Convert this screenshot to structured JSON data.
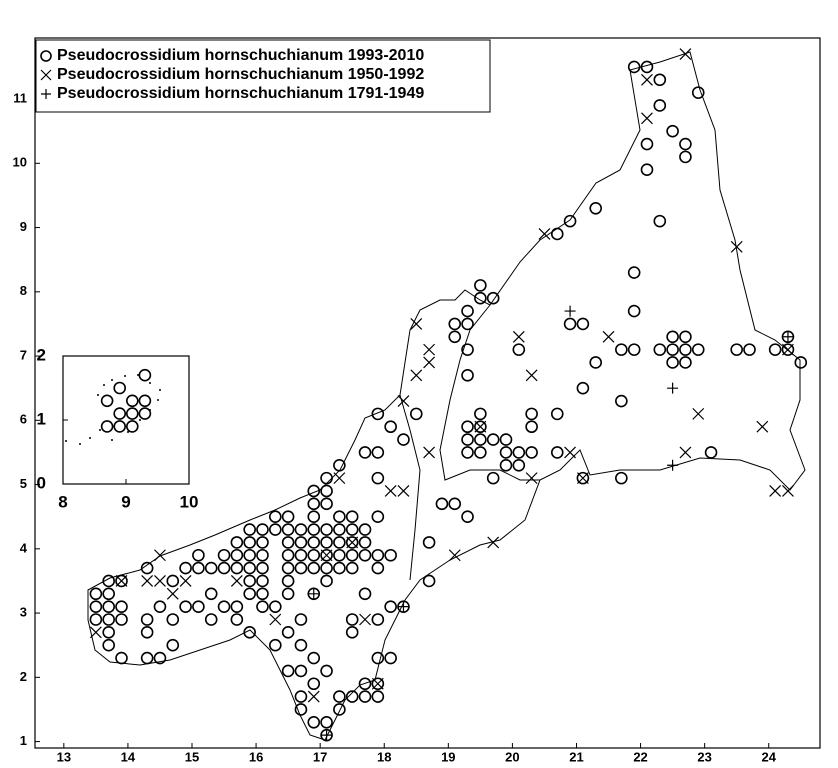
{
  "chart_data": [
    {
      "type": "scatter",
      "xlim": [
        12.55,
        24.8
      ],
      "ylim": [
        0.9,
        11.95
      ],
      "xticks": [
        13,
        14,
        15,
        16,
        17,
        18,
        19,
        20,
        21,
        22,
        23,
        24
      ],
      "yticks": [
        1,
        2,
        3,
        4,
        5,
        6,
        7,
        8,
        9,
        10,
        11
      ],
      "legend": "upper left",
      "series": [
        {
          "name": "Pseudocrossidium hornschuchianum 1993-2010",
          "marker": "circle",
          "color": "#000000",
          "x": [
            13.5,
            13.5,
            13.5,
            13.7,
            13.7,
            13.7,
            13.7,
            13.7,
            13.7,
            13.9,
            13.9,
            13.9,
            13.9,
            14.3,
            14.3,
            14.3,
            14.3,
            14.5,
            14.5,
            14.7,
            14.7,
            14.7,
            14.9,
            14.9,
            15.1,
            15.1,
            15.1,
            15.3,
            15.3,
            15.3,
            15.5,
            15.5,
            15.5,
            15.7,
            15.7,
            15.7,
            15.7,
            15.7,
            15.9,
            15.9,
            15.9,
            15.9,
            15.9,
            15.9,
            15.9,
            16.1,
            16.1,
            16.1,
            16.1,
            16.1,
            16.1,
            16.1,
            16.3,
            16.3,
            16.3,
            16.3,
            16.5,
            16.5,
            16.5,
            16.5,
            16.5,
            16.5,
            16.5,
            16.5,
            16.5,
            16.7,
            16.7,
            16.7,
            16.7,
            16.7,
            16.7,
            16.7,
            16.7,
            16.7,
            16.9,
            16.9,
            16.9,
            16.9,
            16.9,
            16.9,
            16.9,
            16.9,
            16.9,
            16.9,
            16.9,
            17.1,
            17.1,
            17.1,
            17.1,
            17.1,
            17.1,
            17.1,
            17.1,
            17.1,
            17.1,
            17.1,
            17.3,
            17.3,
            17.3,
            17.3,
            17.3,
            17.3,
            17.3,
            17.3,
            17.5,
            17.5,
            17.5,
            17.5,
            17.5,
            17.5,
            17.5,
            17.5,
            17.7,
            17.7,
            17.7,
            17.7,
            17.7,
            17.7,
            17.7,
            17.9,
            17.9,
            17.9,
            17.9,
            17.9,
            17.9,
            17.9,
            17.9,
            17.9,
            17.9,
            18.1,
            18.1,
            18.1,
            18.1,
            18.3,
            18.3,
            18.5,
            18.7,
            18.7,
            18.9,
            19.1,
            19.1,
            19.1,
            19.3,
            19.3,
            19.3,
            19.3,
            19.3,
            19.3,
            19.3,
            19.3,
            19.5,
            19.5,
            19.5,
            19.5,
            19.5,
            19.5,
            19.7,
            19.7,
            19.7,
            19.9,
            19.9,
            19.9,
            20.1,
            20.1,
            20.1,
            20.3,
            20.3,
            20.3,
            20.7,
            20.7,
            20.7,
            20.9,
            20.9,
            21.1,
            21.1,
            21.1,
            21.3,
            21.3,
            21.7,
            21.7,
            21.7,
            21.9,
            21.9,
            21.9,
            21.9,
            22.1,
            22.1,
            22.1,
            22.3,
            22.3,
            22.3,
            22.3,
            22.5,
            22.5,
            22.5,
            22.5,
            22.7,
            22.7,
            22.7,
            22.7,
            22.7,
            22.9,
            22.9,
            23.1,
            23.5,
            23.7,
            24.1,
            24.3,
            24.3,
            24.5
          ],
          "values": [
            3.3,
            3.1,
            2.9,
            3.5,
            3.3,
            3.1,
            2.9,
            2.7,
            2.5,
            3.1,
            2.9,
            3.5,
            2.3,
            3.7,
            2.9,
            2.7,
            2.3,
            2.3,
            3.1,
            3.5,
            2.9,
            2.5,
            3.7,
            3.1,
            3.9,
            3.7,
            3.1,
            3.7,
            3.3,
            2.9,
            3.9,
            3.7,
            3.1,
            4.1,
            3.9,
            3.7,
            3.1,
            2.9,
            4.3,
            4.1,
            3.9,
            3.7,
            3.5,
            3.3,
            2.7,
            4.3,
            4.1,
            3.9,
            3.7,
            3.5,
            3.3,
            3.1,
            4.5,
            4.3,
            3.1,
            2.5,
            4.5,
            4.3,
            4.1,
            3.9,
            3.7,
            3.5,
            3.3,
            2.7,
            2.1,
            4.3,
            4.1,
            3.9,
            3.7,
            2.9,
            2.5,
            2.1,
            1.7,
            1.5,
            4.9,
            4.7,
            4.5,
            4.3,
            4.1,
            3.9,
            3.7,
            3.3,
            2.3,
            1.9,
            1.3,
            5.1,
            4.9,
            4.7,
            4.3,
            4.1,
            3.9,
            3.7,
            3.5,
            2.1,
            1.3,
            1.1,
            5.3,
            4.5,
            4.3,
            4.1,
            3.9,
            3.7,
            1.7,
            1.5,
            4.5,
            4.3,
            4.1,
            3.9,
            3.7,
            2.9,
            2.7,
            1.7,
            5.5,
            4.3,
            4.1,
            3.9,
            3.3,
            1.9,
            1.7,
            6.1,
            5.5,
            5.1,
            4.5,
            3.9,
            3.7,
            2.9,
            2.3,
            1.9,
            1.7,
            5.9,
            3.9,
            3.1,
            2.3,
            5.7,
            3.1,
            6.1,
            4.1,
            3.5,
            4.7,
            7.5,
            7.3,
            4.7,
            7.7,
            7.5,
            7.1,
            6.7,
            5.9,
            5.7,
            5.5,
            4.5,
            8.1,
            7.9,
            6.1,
            5.9,
            5.7,
            5.5,
            7.9,
            5.7,
            5.1,
            5.7,
            5.5,
            5.3,
            7.1,
            5.5,
            5.3,
            6.1,
            5.9,
            5.5,
            8.9,
            6.1,
            5.5,
            9.1,
            7.5,
            7.5,
            6.5,
            5.1,
            9.3,
            6.9,
            7.1,
            6.3,
            5.1,
            11.5,
            8.3,
            7.7,
            7.1,
            11.5,
            10.3,
            9.9,
            11.3,
            10.9,
            9.1,
            7.1,
            10.5,
            7.3,
            7.1,
            6.9,
            10.3,
            10.1,
            7.3,
            7.1,
            6.9,
            11.1,
            7.1,
            5.5,
            7.1,
            7.1,
            7.1,
            7.3,
            7.1,
            6.9
          ]
        },
        {
          "name": "Pseudocrossidium hornschuchianum 1950-1992",
          "marker": "cross",
          "color": "#000000",
          "x": [
            13.5,
            13.9,
            14.3,
            14.5,
            14.5,
            14.7,
            14.9,
            15.7,
            16.3,
            16.9,
            17.1,
            17.3,
            17.5,
            17.7,
            17.9,
            18.1,
            18.3,
            18.3,
            18.5,
            18.5,
            18.7,
            18.7,
            18.7,
            19.1,
            19.5,
            19.7,
            20.1,
            20.3,
            20.3,
            20.5,
            20.9,
            21.1,
            21.5,
            22.1,
            22.1,
            22.7,
            22.7,
            22.9,
            23.5,
            23.9,
            24.1,
            24.3,
            24.3
          ],
          "values": [
            2.7,
            3.5,
            3.5,
            3.9,
            3.5,
            3.3,
            3.5,
            3.5,
            2.9,
            1.7,
            3.9,
            5.1,
            4.1,
            2.9,
            1.9,
            4.9,
            6.3,
            4.9,
            7.5,
            6.7,
            7.1,
            6.9,
            5.5,
            3.9,
            5.9,
            4.1,
            7.3,
            6.7,
            5.1,
            8.9,
            5.5,
            5.1,
            7.3,
            11.3,
            10.7,
            11.7,
            5.5,
            6.1,
            8.7,
            5.9,
            4.9,
            7.1,
            4.9
          ]
        },
        {
          "name": "Pseudocrossidium hornschuchianum 1791-1949",
          "marker": "plus",
          "color": "#000000",
          "x": [
            16.9,
            17.1,
            18.3,
            20.9,
            22.5,
            22.5,
            24.3
          ],
          "values": [
            3.3,
            1.1,
            3.1,
            7.7,
            6.5,
            5.3,
            7.3
          ]
        }
      ]
    },
    {
      "type": "scatter",
      "xlim": [
        8,
        10
      ],
      "ylim": [
        0,
        2
      ],
      "xticks": [
        8,
        9,
        10
      ],
      "yticks": [
        0,
        1,
        2
      ],
      "series": [
        {
          "marker": "circle",
          "color": "#000000",
          "x": [
            8.7,
            8.9,
            9.1,
            9.3,
            8.9,
            9.1,
            9.3,
            8.7,
            8.9,
            9.1,
            9.3
          ],
          "values": [
            1.3,
            1.5,
            1.3,
            1.3,
            1.1,
            1.1,
            1.1,
            0.9,
            0.9,
            0.9,
            1.7
          ]
        }
      ]
    }
  ]
}
